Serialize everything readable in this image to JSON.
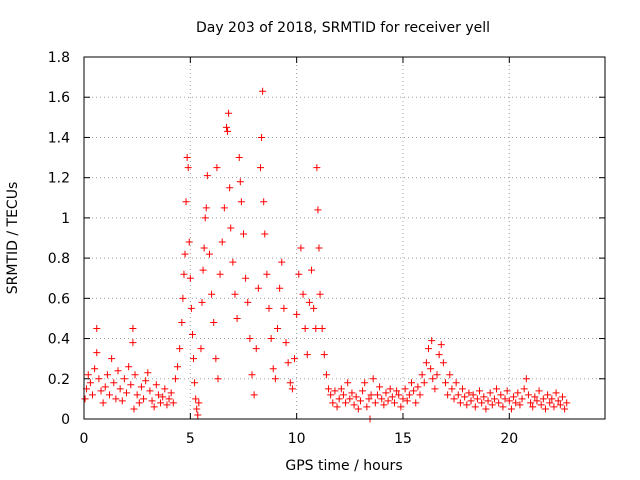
{
  "chart_data": {
    "type": "scatter",
    "title": "Day 203 of 2018, SRMTID for receiver yell",
    "xlabel": "GPS time / hours",
    "ylabel": "SRMTID / TECUs",
    "xlim": [
      0,
      24.5
    ],
    "ylim": [
      0,
      1.8
    ],
    "grid": true,
    "xticks": [
      0,
      5,
      10,
      15,
      20
    ],
    "xtick_labels": [
      "0",
      "5",
      "10",
      "15",
      "20"
    ],
    "yticks": [
      0,
      0.2,
      0.4,
      0.6,
      0.8,
      1.0,
      1.2,
      1.4,
      1.6,
      1.8
    ],
    "ytick_labels": [
      "0",
      "0.2",
      "0.4",
      "0.6",
      "0.8",
      "1",
      "1.2",
      "1.4",
      "1.6",
      "1.8"
    ],
    "marker": "+",
    "marker_color": "#ff0000",
    "series": [
      {
        "name": "SRMTID",
        "points": [
          [
            0.05,
            0.1
          ],
          [
            0.12,
            0.15
          ],
          [
            0.2,
            0.22
          ],
          [
            0.3,
            0.18
          ],
          [
            0.4,
            0.12
          ],
          [
            0.5,
            0.25
          ],
          [
            0.6,
            0.33
          ],
          [
            0.6,
            0.45
          ],
          [
            0.7,
            0.2
          ],
          [
            0.8,
            0.14
          ],
          [
            0.9,
            0.08
          ],
          [
            1.0,
            0.16
          ],
          [
            1.1,
            0.22
          ],
          [
            1.2,
            0.12
          ],
          [
            1.3,
            0.3
          ],
          [
            1.4,
            0.18
          ],
          [
            1.5,
            0.1
          ],
          [
            1.6,
            0.24
          ],
          [
            1.7,
            0.15
          ],
          [
            1.8,
            0.09
          ],
          [
            1.9,
            0.2
          ],
          [
            2.0,
            0.13
          ],
          [
            2.1,
            0.26
          ],
          [
            2.2,
            0.17
          ],
          [
            2.3,
            0.45
          ],
          [
            2.3,
            0.38
          ],
          [
            2.35,
            0.05
          ],
          [
            2.4,
            0.22
          ],
          [
            2.5,
            0.12
          ],
          [
            2.6,
            0.08
          ],
          [
            2.7,
            0.16
          ],
          [
            2.8,
            0.1
          ],
          [
            2.9,
            0.19
          ],
          [
            3.0,
            0.23
          ],
          [
            3.1,
            0.14
          ],
          [
            3.2,
            0.09
          ],
          [
            3.3,
            0.06
          ],
          [
            3.4,
            0.17
          ],
          [
            3.5,
            0.12
          ],
          [
            3.6,
            0.08
          ],
          [
            3.7,
            0.11
          ],
          [
            3.8,
            0.15
          ],
          [
            3.9,
            0.07
          ],
          [
            4.0,
            0.1
          ],
          [
            4.1,
            0.13
          ],
          [
            4.2,
            0.08
          ],
          [
            4.3,
            0.2
          ],
          [
            4.4,
            0.26
          ],
          [
            4.5,
            0.35
          ],
          [
            4.6,
            0.48
          ],
          [
            4.65,
            0.6
          ],
          [
            4.7,
            0.72
          ],
          [
            4.75,
            0.82
          ],
          [
            4.8,
            1.08
          ],
          [
            4.85,
            1.3
          ],
          [
            4.9,
            1.25
          ],
          [
            4.95,
            0.88
          ],
          [
            5.0,
            0.7
          ],
          [
            5.05,
            0.55
          ],
          [
            5.1,
            0.42
          ],
          [
            5.15,
            0.3
          ],
          [
            5.2,
            0.18
          ],
          [
            5.25,
            0.1
          ],
          [
            5.3,
            0.05
          ],
          [
            5.35,
            0.02
          ],
          [
            5.4,
            0.08
          ],
          [
            5.5,
            0.35
          ],
          [
            5.55,
            0.58
          ],
          [
            5.6,
            0.74
          ],
          [
            5.65,
            0.85
          ],
          [
            5.7,
            1.0
          ],
          [
            5.75,
            1.05
          ],
          [
            5.8,
            1.21
          ],
          [
            5.9,
            0.82
          ],
          [
            6.0,
            0.62
          ],
          [
            6.1,
            0.48
          ],
          [
            6.2,
            0.3
          ],
          [
            6.25,
            1.25
          ],
          [
            6.3,
            0.2
          ],
          [
            6.4,
            0.72
          ],
          [
            6.5,
            0.88
          ],
          [
            6.6,
            1.05
          ],
          [
            6.7,
            1.45
          ],
          [
            6.75,
            1.43
          ],
          [
            6.8,
            1.52
          ],
          [
            6.85,
            1.15
          ],
          [
            6.9,
            0.95
          ],
          [
            7.0,
            0.78
          ],
          [
            7.1,
            0.62
          ],
          [
            7.2,
            0.5
          ],
          [
            7.3,
            1.3
          ],
          [
            7.35,
            1.18
          ],
          [
            7.4,
            1.08
          ],
          [
            7.5,
            0.92
          ],
          [
            7.6,
            0.7
          ],
          [
            7.7,
            0.58
          ],
          [
            7.8,
            0.4
          ],
          [
            7.9,
            0.22
          ],
          [
            8.0,
            0.12
          ],
          [
            8.1,
            0.35
          ],
          [
            8.2,
            0.65
          ],
          [
            8.3,
            1.25
          ],
          [
            8.35,
            1.4
          ],
          [
            8.4,
            1.63
          ],
          [
            8.45,
            1.08
          ],
          [
            8.5,
            0.92
          ],
          [
            8.6,
            0.72
          ],
          [
            8.7,
            0.55
          ],
          [
            8.8,
            0.4
          ],
          [
            8.9,
            0.25
          ],
          [
            9.0,
            0.2
          ],
          [
            9.1,
            0.45
          ],
          [
            9.2,
            0.65
          ],
          [
            9.3,
            0.78
          ],
          [
            9.4,
            0.55
          ],
          [
            9.5,
            0.38
          ],
          [
            9.6,
            0.28
          ],
          [
            9.7,
            0.18
          ],
          [
            9.8,
            0.15
          ],
          [
            9.9,
            0.3
          ],
          [
            10.0,
            0.52
          ],
          [
            10.1,
            0.72
          ],
          [
            10.2,
            0.85
          ],
          [
            10.3,
            0.62
          ],
          [
            10.4,
            0.45
          ],
          [
            10.5,
            0.32
          ],
          [
            10.6,
            0.58
          ],
          [
            10.7,
            0.74
          ],
          [
            10.8,
            0.55
          ],
          [
            10.9,
            0.45
          ],
          [
            10.95,
            1.25
          ],
          [
            11.0,
            1.04
          ],
          [
            11.05,
            0.85
          ],
          [
            11.1,
            0.62
          ],
          [
            11.2,
            0.45
          ],
          [
            11.3,
            0.32
          ],
          [
            11.4,
            0.22
          ],
          [
            11.5,
            0.15
          ],
          [
            11.6,
            0.12
          ],
          [
            11.7,
            0.08
          ],
          [
            11.8,
            0.14
          ],
          [
            11.9,
            0.06
          ],
          [
            12.0,
            0.1
          ],
          [
            12.1,
            0.15
          ],
          [
            12.2,
            0.12
          ],
          [
            12.3,
            0.08
          ],
          [
            12.4,
            0.18
          ],
          [
            12.5,
            0.1
          ],
          [
            12.6,
            0.13
          ],
          [
            12.7,
            0.07
          ],
          [
            12.8,
            0.11
          ],
          [
            12.9,
            0.05
          ],
          [
            13.0,
            0.09
          ],
          [
            13.1,
            0.14
          ],
          [
            13.2,
            0.18
          ],
          [
            13.3,
            0.06
          ],
          [
            13.4,
            0.1
          ],
          [
            13.45,
            0.0
          ],
          [
            13.5,
            0.12
          ],
          [
            13.6,
            0.2
          ],
          [
            13.7,
            0.08
          ],
          [
            13.8,
            0.12
          ],
          [
            13.9,
            0.16
          ],
          [
            14.0,
            0.1
          ],
          [
            14.1,
            0.07
          ],
          [
            14.2,
            0.13
          ],
          [
            14.3,
            0.09
          ],
          [
            14.4,
            0.15
          ],
          [
            14.5,
            0.11
          ],
          [
            14.6,
            0.08
          ],
          [
            14.7,
            0.14
          ],
          [
            14.8,
            0.12
          ],
          [
            14.9,
            0.06
          ],
          [
            15.0,
            0.1
          ],
          [
            15.1,
            0.15
          ],
          [
            15.2,
            0.09
          ],
          [
            15.3,
            0.12
          ],
          [
            15.4,
            0.18
          ],
          [
            15.5,
            0.14
          ],
          [
            15.6,
            0.08
          ],
          [
            15.7,
            0.16
          ],
          [
            15.8,
            0.12
          ],
          [
            15.9,
            0.22
          ],
          [
            16.0,
            0.18
          ],
          [
            16.1,
            0.28
          ],
          [
            16.2,
            0.35
          ],
          [
            16.3,
            0.25
          ],
          [
            16.35,
            0.39
          ],
          [
            16.4,
            0.2
          ],
          [
            16.5,
            0.15
          ],
          [
            16.6,
            0.22
          ],
          [
            16.7,
            0.32
          ],
          [
            16.8,
            0.37
          ],
          [
            16.9,
            0.28
          ],
          [
            17.0,
            0.18
          ],
          [
            17.1,
            0.12
          ],
          [
            17.2,
            0.22
          ],
          [
            17.3,
            0.15
          ],
          [
            17.4,
            0.1
          ],
          [
            17.5,
            0.18
          ],
          [
            17.6,
            0.12
          ],
          [
            17.7,
            0.08
          ],
          [
            17.8,
            0.15
          ],
          [
            17.9,
            0.11
          ],
          [
            18.0,
            0.07
          ],
          [
            18.1,
            0.13
          ],
          [
            18.2,
            0.09
          ],
          [
            18.3,
            0.12
          ],
          [
            18.4,
            0.06
          ],
          [
            18.5,
            0.1
          ],
          [
            18.6,
            0.14
          ],
          [
            18.7,
            0.08
          ],
          [
            18.8,
            0.11
          ],
          [
            18.9,
            0.05
          ],
          [
            19.0,
            0.09
          ],
          [
            19.1,
            0.13
          ],
          [
            19.2,
            0.07
          ],
          [
            19.3,
            0.1
          ],
          [
            19.4,
            0.15
          ],
          [
            19.5,
            0.08
          ],
          [
            19.6,
            0.12
          ],
          [
            19.7,
            0.06
          ],
          [
            19.8,
            0.1
          ],
          [
            19.9,
            0.14
          ],
          [
            20.0,
            0.09
          ],
          [
            20.1,
            0.05
          ],
          [
            20.2,
            0.11
          ],
          [
            20.3,
            0.08
          ],
          [
            20.4,
            0.13
          ],
          [
            20.5,
            0.07
          ],
          [
            20.6,
            0.1
          ],
          [
            20.7,
            0.15
          ],
          [
            20.8,
            0.2
          ],
          [
            20.9,
            0.12
          ],
          [
            21.0,
            0.08
          ],
          [
            21.1,
            0.06
          ],
          [
            21.2,
            0.11
          ],
          [
            21.3,
            0.09
          ],
          [
            21.4,
            0.14
          ],
          [
            21.5,
            0.07
          ],
          [
            21.6,
            0.1
          ],
          [
            21.7,
            0.05
          ],
          [
            21.8,
            0.12
          ],
          [
            21.9,
            0.08
          ],
          [
            22.0,
            0.1
          ],
          [
            22.1,
            0.06
          ],
          [
            22.2,
            0.13
          ],
          [
            22.3,
            0.09
          ],
          [
            22.4,
            0.07
          ],
          [
            22.5,
            0.11
          ],
          [
            22.6,
            0.05
          ],
          [
            22.7,
            0.08
          ]
        ]
      }
    ]
  }
}
